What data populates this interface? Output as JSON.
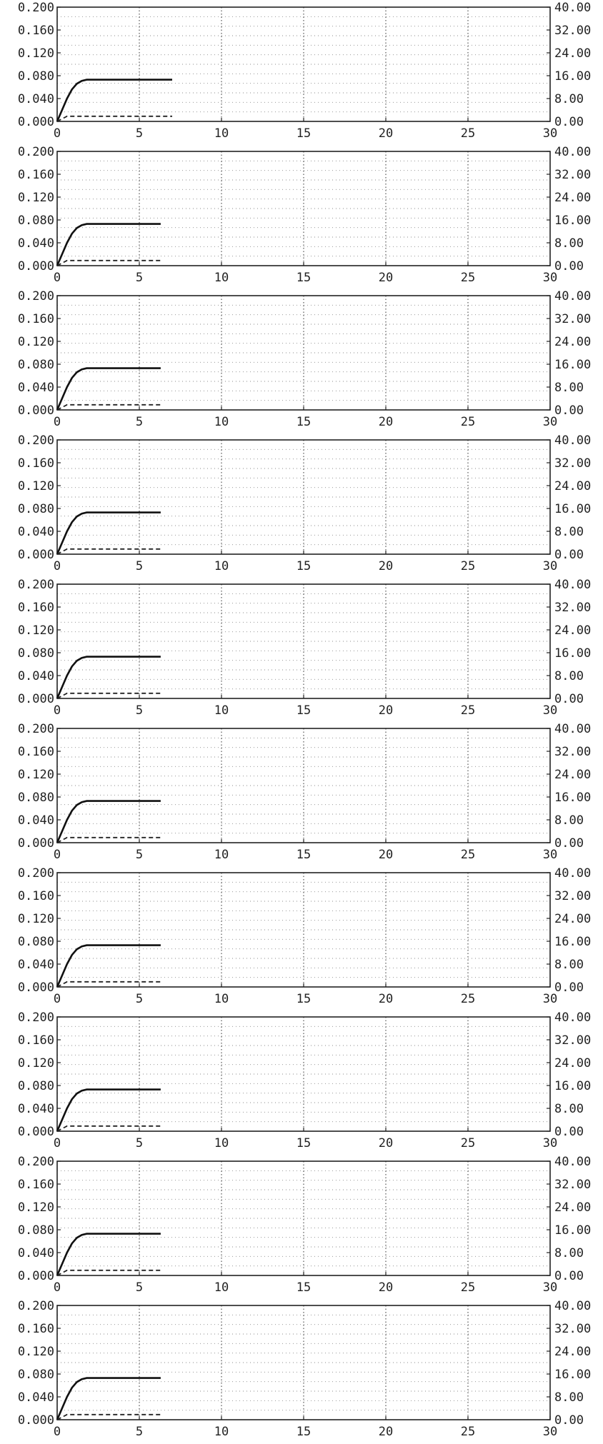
{
  "chart_data": [
    {
      "type": "line",
      "xlim": [
        0,
        30
      ],
      "ylim": [
        0,
        0.2
      ],
      "y2lim": [
        0,
        40
      ],
      "xticks": [
        "0",
        "5",
        "10",
        "15",
        "20",
        "25",
        "30"
      ],
      "yticks": [
        "0.000",
        "0.040",
        "0.080",
        "0.120",
        "0.160",
        "0.200"
      ],
      "y2ticks": [
        "0.00",
        "8.00",
        "16.00",
        "24.00",
        "32.00",
        "40.00"
      ],
      "grid": true,
      "series": [
        {
          "axis": "left",
          "style": "solid",
          "x": [
            0,
            0.3,
            0.6,
            0.9,
            1.2,
            1.5,
            1.8,
            2.2,
            7
          ],
          "y": [
            0,
            0.02,
            0.04,
            0.056,
            0.066,
            0.071,
            0.073,
            0.073,
            0.073
          ]
        },
        {
          "axis": "left",
          "style": "dashed",
          "x": [
            0,
            0.6,
            7
          ],
          "y": [
            0,
            0.009,
            0.009
          ]
        }
      ]
    },
    {
      "type": "line",
      "xlim": [
        0,
        30
      ],
      "ylim": [
        0,
        0.2
      ],
      "y2lim": [
        0,
        40
      ],
      "xticks": [
        "0",
        "5",
        "10",
        "15",
        "20",
        "25",
        "30"
      ],
      "yticks": [
        "0.000",
        "0.040",
        "0.080",
        "0.120",
        "0.160",
        "0.200"
      ],
      "y2ticks": [
        "0.00",
        "8.00",
        "16.00",
        "24.00",
        "32.00",
        "40.00"
      ],
      "grid": true,
      "series": [
        {
          "axis": "left",
          "style": "solid",
          "x": [
            0,
            0.3,
            0.6,
            0.9,
            1.2,
            1.5,
            1.8,
            2.2,
            6.3
          ],
          "y": [
            0,
            0.02,
            0.04,
            0.056,
            0.066,
            0.071,
            0.073,
            0.073,
            0.073
          ]
        },
        {
          "axis": "left",
          "style": "dashed",
          "x": [
            0,
            0.6,
            6.3
          ],
          "y": [
            0,
            0.009,
            0.009
          ]
        }
      ]
    },
    {
      "type": "line",
      "xlim": [
        0,
        30
      ],
      "ylim": [
        0,
        0.2
      ],
      "y2lim": [
        0,
        40
      ],
      "xticks": [
        "0",
        "5",
        "10",
        "15",
        "20",
        "25",
        "30"
      ],
      "yticks": [
        "0.000",
        "0.040",
        "0.080",
        "0.120",
        "0.160",
        "0.200"
      ],
      "y2ticks": [
        "0.00",
        "8.00",
        "16.00",
        "24.00",
        "32.00",
        "40.00"
      ],
      "grid": true,
      "series": [
        {
          "axis": "left",
          "style": "solid",
          "x": [
            0,
            0.3,
            0.6,
            0.9,
            1.2,
            1.5,
            1.8,
            2.2,
            6.3
          ],
          "y": [
            0,
            0.02,
            0.04,
            0.056,
            0.066,
            0.071,
            0.073,
            0.073,
            0.073
          ]
        },
        {
          "axis": "left",
          "style": "dashed",
          "x": [
            0,
            0.6,
            6.3
          ],
          "y": [
            0,
            0.009,
            0.009
          ]
        }
      ]
    },
    {
      "type": "line",
      "xlim": [
        0,
        30
      ],
      "ylim": [
        0,
        0.2
      ],
      "y2lim": [
        0,
        40
      ],
      "xticks": [
        "0",
        "5",
        "10",
        "15",
        "20",
        "25",
        "30"
      ],
      "yticks": [
        "0.000",
        "0.040",
        "0.080",
        "0.120",
        "0.160",
        "0.200"
      ],
      "y2ticks": [
        "0.00",
        "8.00",
        "16.00",
        "24.00",
        "32.00",
        "40.00"
      ],
      "grid": true,
      "series": [
        {
          "axis": "left",
          "style": "solid",
          "x": [
            0,
            0.3,
            0.6,
            0.9,
            1.2,
            1.5,
            1.8,
            2.2,
            6.3
          ],
          "y": [
            0,
            0.02,
            0.04,
            0.056,
            0.066,
            0.071,
            0.073,
            0.073,
            0.073
          ]
        },
        {
          "axis": "left",
          "style": "dashed",
          "x": [
            0,
            0.6,
            6.3
          ],
          "y": [
            0,
            0.009,
            0.009
          ]
        }
      ]
    },
    {
      "type": "line",
      "xlim": [
        0,
        30
      ],
      "ylim": [
        0,
        0.2
      ],
      "y2lim": [
        0,
        40
      ],
      "xticks": [
        "0",
        "5",
        "10",
        "15",
        "20",
        "25",
        "30"
      ],
      "yticks": [
        "0.000",
        "0.040",
        "0.080",
        "0.120",
        "0.160",
        "0.200"
      ],
      "y2ticks": [
        "0.00",
        "8.00",
        "16.00",
        "24.00",
        "32.00",
        "40.00"
      ],
      "grid": true,
      "series": [
        {
          "axis": "left",
          "style": "solid",
          "x": [
            0,
            0.3,
            0.6,
            0.9,
            1.2,
            1.5,
            1.8,
            2.2,
            6.3
          ],
          "y": [
            0,
            0.02,
            0.04,
            0.056,
            0.066,
            0.071,
            0.073,
            0.073,
            0.073
          ]
        },
        {
          "axis": "left",
          "style": "dashed",
          "x": [
            0,
            0.6,
            6.3
          ],
          "y": [
            0,
            0.009,
            0.009
          ]
        }
      ]
    },
    {
      "type": "line",
      "xlim": [
        0,
        30
      ],
      "ylim": [
        0,
        0.2
      ],
      "y2lim": [
        0,
        40
      ],
      "xticks": [
        "0",
        "5",
        "10",
        "15",
        "20",
        "25",
        "30"
      ],
      "yticks": [
        "0.000",
        "0.040",
        "0.080",
        "0.120",
        "0.160",
        "0.200"
      ],
      "y2ticks": [
        "0.00",
        "8.00",
        "16.00",
        "24.00",
        "32.00",
        "40.00"
      ],
      "grid": true,
      "series": [
        {
          "axis": "left",
          "style": "solid",
          "x": [
            0,
            0.3,
            0.6,
            0.9,
            1.2,
            1.5,
            1.8,
            2.2,
            6.3
          ],
          "y": [
            0,
            0.02,
            0.04,
            0.056,
            0.066,
            0.071,
            0.073,
            0.073,
            0.073
          ]
        },
        {
          "axis": "left",
          "style": "dashed",
          "x": [
            0,
            0.6,
            6.3
          ],
          "y": [
            0,
            0.009,
            0.009
          ]
        }
      ]
    },
    {
      "type": "line",
      "xlim": [
        0,
        30
      ],
      "ylim": [
        0,
        0.2
      ],
      "y2lim": [
        0,
        40
      ],
      "xticks": [
        "0",
        "5",
        "10",
        "15",
        "20",
        "25",
        "30"
      ],
      "yticks": [
        "0.000",
        "0.040",
        "0.080",
        "0.120",
        "0.160",
        "0.200"
      ],
      "y2ticks": [
        "0.00",
        "8.00",
        "16.00",
        "24.00",
        "32.00",
        "40.00"
      ],
      "grid": true,
      "series": [
        {
          "axis": "left",
          "style": "solid",
          "x": [
            0,
            0.3,
            0.6,
            0.9,
            1.2,
            1.5,
            1.8,
            2.2,
            6.3
          ],
          "y": [
            0,
            0.02,
            0.04,
            0.056,
            0.066,
            0.071,
            0.073,
            0.073,
            0.073
          ]
        },
        {
          "axis": "left",
          "style": "dashed",
          "x": [
            0,
            0.6,
            6.3
          ],
          "y": [
            0,
            0.009,
            0.009
          ]
        }
      ]
    },
    {
      "type": "line",
      "xlim": [
        0,
        30
      ],
      "ylim": [
        0,
        0.2
      ],
      "y2lim": [
        0,
        40
      ],
      "xticks": [
        "0",
        "5",
        "10",
        "15",
        "20",
        "25",
        "30"
      ],
      "yticks": [
        "0.000",
        "0.040",
        "0.080",
        "0.120",
        "0.160",
        "0.200"
      ],
      "y2ticks": [
        "0.00",
        "8.00",
        "16.00",
        "24.00",
        "32.00",
        "40.00"
      ],
      "grid": true,
      "series": [
        {
          "axis": "left",
          "style": "solid",
          "x": [
            0,
            0.3,
            0.6,
            0.9,
            1.2,
            1.5,
            1.8,
            2.2,
            6.3
          ],
          "y": [
            0,
            0.02,
            0.04,
            0.056,
            0.066,
            0.071,
            0.073,
            0.073,
            0.073
          ]
        },
        {
          "axis": "left",
          "style": "dashed",
          "x": [
            0,
            0.6,
            6.3
          ],
          "y": [
            0,
            0.009,
            0.009
          ]
        }
      ]
    },
    {
      "type": "line",
      "xlim": [
        0,
        30
      ],
      "ylim": [
        0,
        0.2
      ],
      "y2lim": [
        0,
        40
      ],
      "xticks": [
        "0",
        "5",
        "10",
        "15",
        "20",
        "25",
        "30"
      ],
      "yticks": [
        "0.000",
        "0.040",
        "0.080",
        "0.120",
        "0.160",
        "0.200"
      ],
      "y2ticks": [
        "0.00",
        "8.00",
        "16.00",
        "24.00",
        "32.00",
        "40.00"
      ],
      "grid": true,
      "series": [
        {
          "axis": "left",
          "style": "solid",
          "x": [
            0,
            0.3,
            0.6,
            0.9,
            1.2,
            1.5,
            1.8,
            2.2,
            6.3
          ],
          "y": [
            0,
            0.02,
            0.04,
            0.056,
            0.066,
            0.071,
            0.073,
            0.073,
            0.073
          ]
        },
        {
          "axis": "left",
          "style": "dashed",
          "x": [
            0,
            0.6,
            6.3
          ],
          "y": [
            0,
            0.009,
            0.009
          ]
        }
      ]
    },
    {
      "type": "line",
      "xlim": [
        0,
        30
      ],
      "ylim": [
        0,
        0.2
      ],
      "y2lim": [
        0,
        40
      ],
      "xticks": [
        "0",
        "5",
        "10",
        "15",
        "20",
        "25",
        "30"
      ],
      "yticks": [
        "0.000",
        "0.040",
        "0.080",
        "0.120",
        "0.160",
        "0.200"
      ],
      "y2ticks": [
        "0.00",
        "8.00",
        "16.00",
        "24.00",
        "32.00",
        "40.00"
      ],
      "grid": true,
      "series": [
        {
          "axis": "left",
          "style": "solid",
          "x": [
            0,
            0.3,
            0.6,
            0.9,
            1.2,
            1.5,
            1.8,
            2.2,
            6.3
          ],
          "y": [
            0,
            0.02,
            0.04,
            0.056,
            0.066,
            0.071,
            0.073,
            0.073,
            0.073
          ]
        },
        {
          "axis": "left",
          "style": "dashed",
          "x": [
            0,
            0.6,
            6.3
          ],
          "y": [
            0,
            0.009,
            0.009
          ]
        }
      ]
    }
  ]
}
